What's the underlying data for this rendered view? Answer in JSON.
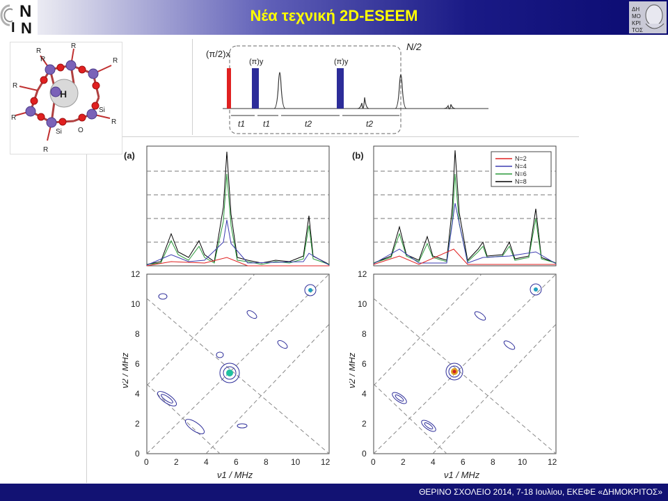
{
  "header": {
    "title": "Νέα τεχνική 2D-ESEEM",
    "logo_left_letters": [
      "N",
      "I",
      "N"
    ],
    "logo_right_text": "ΔΗΜΟΚΡΙΤΟΣ"
  },
  "footer": {
    "text": "ΘΕΡΙΝΟ ΣΧΟΛΕΙΟ 2014, 7-18 Ιουλίου, ΕΚΕΦΕ «ΔΗΜΟΚΡΙΤΟΣ»"
  },
  "molecule": {
    "center_label": "H",
    "atoms": [
      "R",
      "R",
      "R",
      "R",
      "R",
      "R",
      "R",
      "R",
      "Si",
      "Si",
      "O"
    ]
  },
  "pulse_sequence": {
    "pulse_labels": [
      "(π/2)x",
      "(π)y",
      "(π)y"
    ],
    "repeat_label": "N/2",
    "delays": [
      "t1",
      "t1",
      "t2",
      "t2"
    ]
  },
  "panels": [
    {
      "label": "(a)"
    },
    {
      "label": "(b)"
    }
  ],
  "legend": {
    "entries": [
      {
        "name": "N=2",
        "color": "#e02020"
      },
      {
        "name": "N=4",
        "color": "#3b3bb0"
      },
      {
        "name": "N=6",
        "color": "#2a9a3a"
      },
      {
        "name": "N=8",
        "color": "#000000"
      }
    ]
  },
  "axes": {
    "x_label": "ν1 / MHz",
    "y_label": "ν2 / MHz",
    "ticks": [
      0,
      2,
      4,
      6,
      8,
      10,
      12
    ]
  }
}
